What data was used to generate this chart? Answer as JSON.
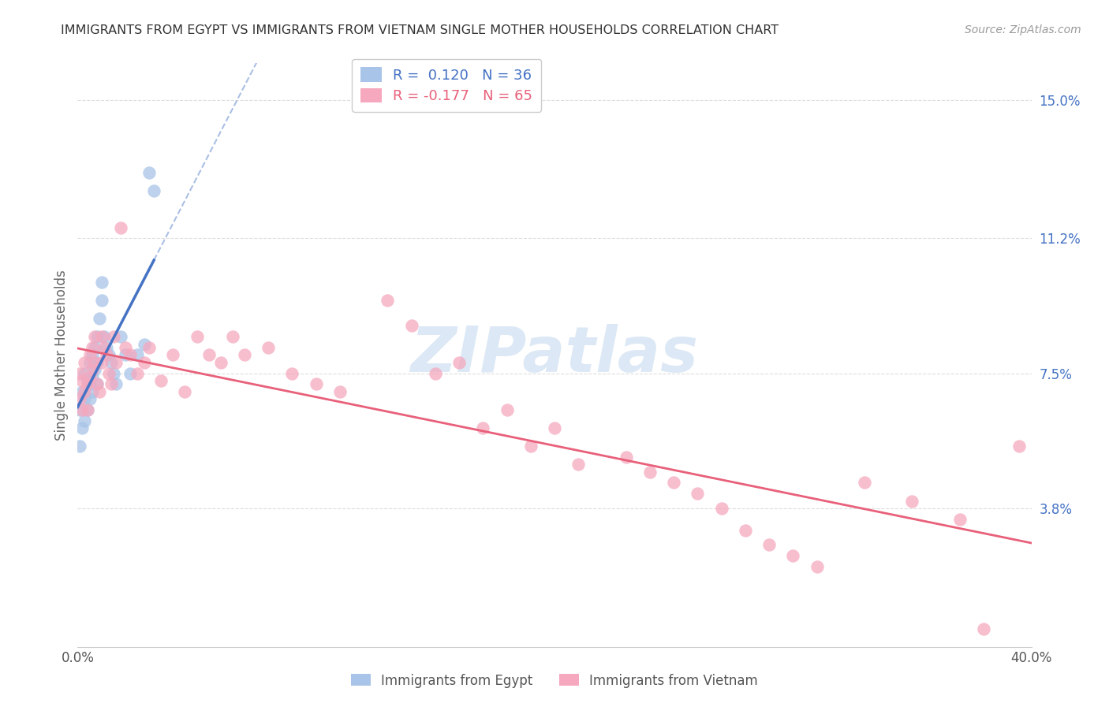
{
  "title": "IMMIGRANTS FROM EGYPT VS IMMIGRANTS FROM VIETNAM SINGLE MOTHER HOUSEHOLDS CORRELATION CHART",
  "source": "Source: ZipAtlas.com",
  "ylabel": "Single Mother Households",
  "xlim": [
    0.0,
    0.4
  ],
  "ylim": [
    0.0,
    0.16
  ],
  "ytick_labels": [
    "15.0%",
    "11.2%",
    "7.5%",
    "3.8%"
  ],
  "ytick_positions": [
    0.15,
    0.112,
    0.075,
    0.038
  ],
  "grid_color": "#dddddd",
  "background_color": "#ffffff",
  "egypt_color": "#a8c4e8",
  "vietnam_color": "#f5a8be",
  "egypt_line_color": "#4472c4",
  "vietnam_line_color": "#e8607a",
  "egypt_R": 0.12,
  "egypt_N": 36,
  "vietnam_R": -0.177,
  "vietnam_N": 65,
  "watermark": "ZIPatlas",
  "egypt_x": [
    0.001,
    0.001,
    0.002,
    0.002,
    0.003,
    0.003,
    0.003,
    0.004,
    0.004,
    0.005,
    0.005,
    0.005,
    0.006,
    0.006,
    0.006,
    0.007,
    0.007,
    0.008,
    0.008,
    0.008,
    0.009,
    0.01,
    0.01,
    0.011,
    0.012,
    0.013,
    0.014,
    0.015,
    0.016,
    0.018,
    0.02,
    0.022,
    0.025,
    0.028,
    0.03,
    0.032
  ],
  "egypt_y": [
    0.065,
    0.055,
    0.07,
    0.06,
    0.075,
    0.068,
    0.062,
    0.073,
    0.065,
    0.078,
    0.072,
    0.068,
    0.08,
    0.074,
    0.07,
    0.082,
    0.076,
    0.085,
    0.078,
    0.072,
    0.09,
    0.095,
    0.1,
    0.085,
    0.082,
    0.08,
    0.078,
    0.075,
    0.072,
    0.085,
    0.08,
    0.075,
    0.08,
    0.083,
    0.13,
    0.125
  ],
  "vietnam_x": [
    0.001,
    0.001,
    0.002,
    0.002,
    0.003,
    0.003,
    0.004,
    0.004,
    0.005,
    0.005,
    0.006,
    0.006,
    0.007,
    0.007,
    0.008,
    0.009,
    0.01,
    0.01,
    0.011,
    0.012,
    0.013,
    0.014,
    0.015,
    0.016,
    0.018,
    0.02,
    0.022,
    0.025,
    0.028,
    0.03,
    0.035,
    0.04,
    0.045,
    0.05,
    0.055,
    0.06,
    0.065,
    0.07,
    0.08,
    0.09,
    0.1,
    0.11,
    0.13,
    0.14,
    0.15,
    0.16,
    0.17,
    0.18,
    0.19,
    0.2,
    0.21,
    0.23,
    0.24,
    0.25,
    0.26,
    0.27,
    0.28,
    0.29,
    0.3,
    0.31,
    0.33,
    0.35,
    0.37,
    0.38,
    0.395
  ],
  "vietnam_y": [
    0.075,
    0.068,
    0.073,
    0.065,
    0.078,
    0.07,
    0.072,
    0.065,
    0.08,
    0.074,
    0.082,
    0.076,
    0.085,
    0.078,
    0.072,
    0.07,
    0.085,
    0.078,
    0.082,
    0.08,
    0.075,
    0.072,
    0.085,
    0.078,
    0.115,
    0.082,
    0.08,
    0.075,
    0.078,
    0.082,
    0.073,
    0.08,
    0.07,
    0.085,
    0.08,
    0.078,
    0.085,
    0.08,
    0.082,
    0.075,
    0.072,
    0.07,
    0.095,
    0.088,
    0.075,
    0.078,
    0.06,
    0.065,
    0.055,
    0.06,
    0.05,
    0.052,
    0.048,
    0.045,
    0.042,
    0.038,
    0.032,
    0.028,
    0.025,
    0.022,
    0.045,
    0.04,
    0.035,
    0.005,
    0.055
  ]
}
